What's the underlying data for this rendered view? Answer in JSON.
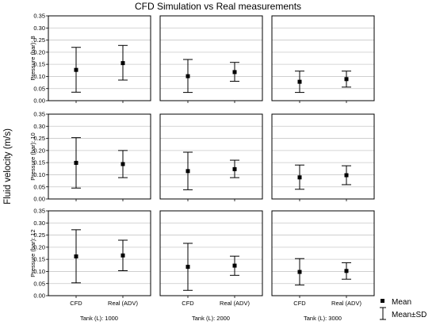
{
  "chart_data": {
    "type": "errorbar",
    "title": "CFD Simulation vs Real measurements",
    "ylabel": "Fluid velocity (m/s)",
    "ylim": [
      0,
      0.35
    ],
    "yticks": [
      "0.00",
      "0.05",
      "0.10",
      "0.15",
      "0.20",
      "0.25",
      "0.30",
      "0.35"
    ],
    "categories": [
      "CFD",
      "Real (ADV)"
    ],
    "column_labels": [
      "Tank (L): 1000",
      "Tank (L): 2000",
      "Tank (L): 3000"
    ],
    "row_labels": [
      "Pressure (bar): 8",
      "Pressure (bar): 10",
      "Pressure (bar): 12"
    ],
    "legend": {
      "mean": "Mean",
      "sd": "Mean±SD"
    },
    "panels": [
      {
        "row": 0,
        "col": 0,
        "points": [
          {
            "mean": 0.127,
            "low": 0.035,
            "high": 0.22
          },
          {
            "mean": 0.155,
            "low": 0.085,
            "high": 0.228
          }
        ]
      },
      {
        "row": 0,
        "col": 1,
        "points": [
          {
            "mean": 0.101,
            "low": 0.034,
            "high": 0.17
          },
          {
            "mean": 0.118,
            "low": 0.08,
            "high": 0.158
          }
        ]
      },
      {
        "row": 0,
        "col": 2,
        "points": [
          {
            "mean": 0.078,
            "low": 0.034,
            "high": 0.122
          },
          {
            "mean": 0.089,
            "low": 0.056,
            "high": 0.122
          }
        ]
      },
      {
        "row": 1,
        "col": 0,
        "points": [
          {
            "mean": 0.149,
            "low": 0.045,
            "high": 0.253
          },
          {
            "mean": 0.144,
            "low": 0.088,
            "high": 0.2
          }
        ]
      },
      {
        "row": 1,
        "col": 1,
        "points": [
          {
            "mean": 0.115,
            "low": 0.038,
            "high": 0.193
          },
          {
            "mean": 0.123,
            "low": 0.088,
            "high": 0.16
          }
        ]
      },
      {
        "row": 1,
        "col": 2,
        "points": [
          {
            "mean": 0.089,
            "low": 0.04,
            "high": 0.14
          },
          {
            "mean": 0.098,
            "low": 0.059,
            "high": 0.137
          }
        ]
      },
      {
        "row": 2,
        "col": 0,
        "points": [
          {
            "mean": 0.162,
            "low": 0.053,
            "high": 0.272
          },
          {
            "mean": 0.166,
            "low": 0.103,
            "high": 0.229
          }
        ]
      },
      {
        "row": 2,
        "col": 1,
        "points": [
          {
            "mean": 0.119,
            "low": 0.022,
            "high": 0.216
          },
          {
            "mean": 0.124,
            "low": 0.084,
            "high": 0.163
          }
        ]
      },
      {
        "row": 2,
        "col": 2,
        "points": [
          {
            "mean": 0.098,
            "low": 0.044,
            "high": 0.153
          },
          {
            "mean": 0.102,
            "low": 0.068,
            "high": 0.136
          }
        ]
      }
    ]
  }
}
